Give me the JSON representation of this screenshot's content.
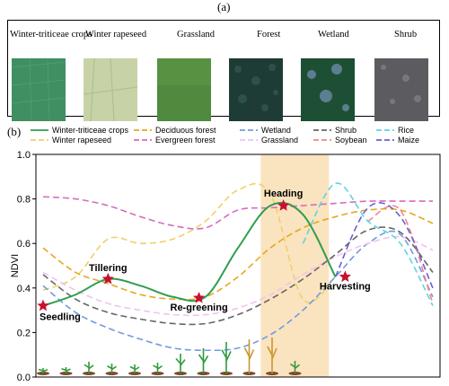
{
  "panel_a": {
    "label": "(a)",
    "thumbnails": [
      {
        "label": "Winter-triticeae crops",
        "color": "#3f8f63"
      },
      {
        "label": "Winter rapeseed",
        "color": "#c7d3a7"
      },
      {
        "label": "Grassland",
        "color": "#4f8a3f"
      },
      {
        "label": "Forest",
        "color": "#1f3b35"
      },
      {
        "label": "Wetland",
        "color": "#1c4f34"
      },
      {
        "label": "Shrub",
        "color": "#5c5c60"
      }
    ]
  },
  "panel_b": {
    "label": "(b)"
  },
  "chart_data": {
    "type": "line",
    "title": "",
    "xlabel": "",
    "ylabel": "NDVI",
    "ylim": [
      0.0,
      1.0
    ],
    "yticks": [
      "0.0",
      "0.2",
      "0.4",
      "0.6",
      "0.8",
      "1.0"
    ],
    "x": [
      0,
      1,
      2,
      3,
      4,
      5,
      6,
      7,
      8,
      9,
      10,
      11,
      12
    ],
    "highlight_range": [
      6.7,
      8.8
    ],
    "highlight_color": "#fae3bf",
    "legend_position": "top",
    "series": [
      {
        "name": "Winter-triticeae crops",
        "color": "#2e9e4f",
        "dash": "solid",
        "values": [
          0.32,
          0.37,
          0.44,
          0.41,
          0.36,
          0.36,
          0.58,
          0.77,
          0.73,
          0.45,
          null,
          null,
          null
        ]
      },
      {
        "name": "Winter rapeseed",
        "color": "#eed16a",
        "dash": "dashed",
        "values": [
          0.39,
          0.45,
          0.62,
          0.6,
          0.62,
          0.7,
          0.84,
          0.82,
          0.35,
          0.45,
          null,
          null,
          null
        ]
      },
      {
        "name": "Deciduous forest",
        "color": "#e5a81d",
        "dash": "dashed",
        "values": [
          0.58,
          0.47,
          0.42,
          0.37,
          0.35,
          0.36,
          0.45,
          0.58,
          0.67,
          0.72,
          0.75,
          0.75,
          0.69
        ]
      },
      {
        "name": "Evergreen forest",
        "color": "#d86ac0",
        "dash": "dashed",
        "values": [
          0.81,
          0.8,
          0.77,
          0.72,
          0.68,
          0.67,
          0.75,
          0.76,
          0.77,
          0.78,
          0.79,
          0.79,
          0.79
        ]
      },
      {
        "name": "Wetland",
        "color": "#6f9be3",
        "dash": "dashed",
        "values": [
          0.41,
          0.29,
          0.22,
          0.17,
          0.13,
          0.12,
          0.13,
          0.19,
          0.3,
          0.45,
          0.6,
          0.64,
          0.36
        ]
      },
      {
        "name": "Grassland",
        "color": "#f0c2f0",
        "dash": "dashed",
        "values": [
          0.47,
          0.39,
          0.33,
          0.3,
          0.28,
          0.28,
          0.31,
          0.37,
          0.46,
          0.54,
          0.6,
          0.63,
          0.57
        ]
      },
      {
        "name": "Shrub",
        "color": "#666666",
        "dash": "dashed",
        "values": [
          0.46,
          0.35,
          0.29,
          0.26,
          0.24,
          0.24,
          0.28,
          0.35,
          0.44,
          0.55,
          0.66,
          0.65,
          0.47
        ]
      },
      {
        "name": "Soybean",
        "color": "#f28686",
        "dash": "dashed",
        "values": [
          null,
          null,
          null,
          null,
          null,
          null,
          null,
          null,
          null,
          null,
          0.7,
          0.75,
          0.33
        ]
      },
      {
        "name": "Rice",
        "color": "#5fd4e0",
        "dash": "dashed",
        "values": [
          null,
          null,
          null,
          null,
          null,
          null,
          null,
          null,
          0.6,
          0.87,
          0.7,
          0.6,
          0.32
        ]
      },
      {
        "name": "Maize",
        "color": "#6b5fd6",
        "dash": "dashed",
        "values": [
          null,
          null,
          null,
          null,
          null,
          null,
          null,
          null,
          null,
          0.45,
          0.76,
          0.72,
          0.4
        ]
      }
    ],
    "annotations": [
      {
        "text": "Seedling",
        "x": 0.0,
        "y": 0.32,
        "color": "#c8102e"
      },
      {
        "text": "Tillering",
        "x": 2.0,
        "y": 0.44,
        "color": "#c8102e"
      },
      {
        "text": "Re-greening",
        "x": 4.8,
        "y": 0.355,
        "color": "#c8102e"
      },
      {
        "text": "Heading",
        "x": 7.4,
        "y": 0.77,
        "color": "#c8102e"
      },
      {
        "text": "Harvesting",
        "x": 9.3,
        "y": 0.45,
        "color": "#c8102e"
      }
    ]
  }
}
